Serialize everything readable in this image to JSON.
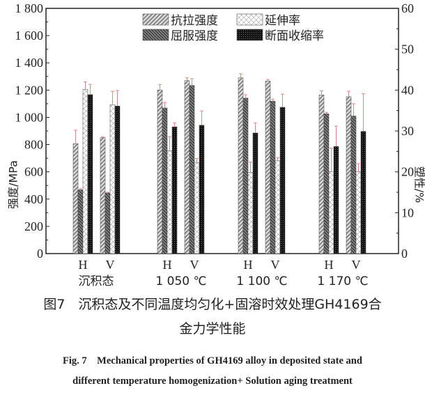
{
  "chart_data": {
    "type": "bar",
    "ylabel": "强度/MPa",
    "y2label": "塑性/%",
    "ylim": [
      0,
      1800
    ],
    "y2lim": [
      0,
      60
    ],
    "yticks": [
      "0",
      "200",
      "400",
      "600",
      "800",
      "1 000",
      "1 200",
      "1 400",
      "1 600",
      "1 800"
    ],
    "y2ticks": [
      "0",
      "10",
      "20",
      "30",
      "40",
      "50",
      "60"
    ],
    "groups": [
      "沉积态",
      "1 050 ℃",
      "1 100 ℃",
      "1 170 ℃"
    ],
    "subcategories": [
      "H",
      "V",
      "H",
      "V",
      "H",
      "V",
      "H",
      "V"
    ],
    "legend_position": "top-center",
    "series": [
      {
        "name": "抗拉强度",
        "axis": "left",
        "values": [
          807,
          851,
          1201,
          1270,
          1290,
          1266,
          1164,
          1151
        ],
        "errors": [
          98,
          5,
          40,
          20,
          30,
          12,
          30,
          40
        ]
      },
      {
        "name": "屈服强度",
        "axis": "left",
        "values": [
          468,
          445,
          1069,
          1234,
          1141,
          1119,
          1026,
          1010
        ],
        "errors": [
          8,
          5,
          40,
          50,
          25,
          15,
          10,
          90
        ]
      },
      {
        "name": "延伸率",
        "axis": "right",
        "values": [
          40.2,
          36.4,
          25.1,
          22.3,
          19.9,
          22.7,
          20.0,
          20.0
        ],
        "errors": [
          1.8,
          3.3,
          3.5,
          1.0,
          2.5,
          0.8,
          5.8,
          2.0
        ]
      },
      {
        "name": "断面收缩率",
        "axis": "right",
        "values": [
          38.9,
          36.1,
          31.0,
          31.4,
          29.5,
          35.8,
          26.2,
          29.9
        ],
        "errors": [
          2.5,
          3.8,
          1.0,
          3.5,
          2.5,
          3.2,
          5.0,
          9.2
        ]
      }
    ]
  },
  "caption": {
    "cn_line1": "图7　沉积态及不同温度均匀化+固溶时效处理GH4169合",
    "cn_line2": "金力学性能",
    "en_line1": "Fig. 7　Mechanical properties of GH4169 alloy in deposited state and",
    "en_line2": "different temperature homogenization+ Solution aging treatment"
  }
}
